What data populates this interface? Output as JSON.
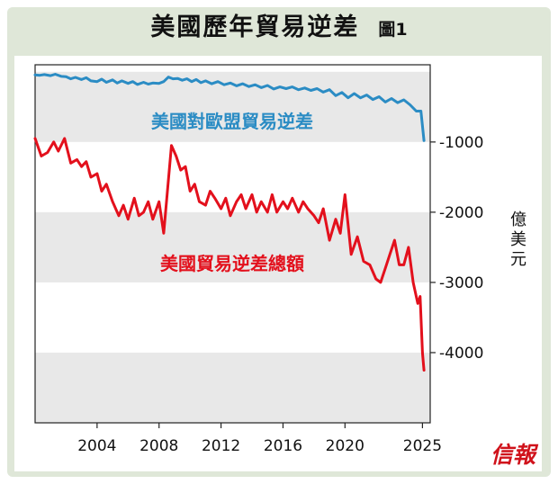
{
  "header": {
    "title": "美國歷年貿易逆差",
    "figure_label": "圖1"
  },
  "colors": {
    "total_series": "#e3101c",
    "eu_series": "#2b8cc4",
    "band": "#e8e8e8",
    "frame": "#dfe7d8"
  },
  "brand": {
    "logo_text": "信報"
  },
  "chart_data": {
    "type": "line",
    "title": "美國歷年貿易逆差",
    "ylabel": "億美元",
    "xlim": [
      2000,
      2025.5
    ],
    "ylim": [
      -5000,
      100
    ],
    "x_ticks": [
      2004,
      2008,
      2012,
      2016,
      2020,
      2025
    ],
    "y_ticks": [
      -1000,
      -2000,
      -3000,
      -4000
    ],
    "y_tick_labels": [
      "-1000",
      "-2000",
      "-3000",
      "-4000"
    ],
    "grid": false,
    "series": [
      {
        "name": "美國對歐盟貿易逆差",
        "color": "#2b8cc4",
        "points": [
          [
            2000.0,
            -45
          ],
          [
            2000.3,
            -50
          ],
          [
            2000.6,
            -40
          ],
          [
            2001.0,
            -55
          ],
          [
            2001.3,
            -35
          ],
          [
            2001.7,
            -65
          ],
          [
            2002.0,
            -70
          ],
          [
            2002.3,
            -100
          ],
          [
            2002.6,
            -80
          ],
          [
            2003.0,
            -110
          ],
          [
            2003.3,
            -85
          ],
          [
            2003.6,
            -130
          ],
          [
            2004.0,
            -140
          ],
          [
            2004.3,
            -105
          ],
          [
            2004.6,
            -150
          ],
          [
            2005.0,
            -115
          ],
          [
            2005.3,
            -160
          ],
          [
            2005.6,
            -130
          ],
          [
            2006.0,
            -165
          ],
          [
            2006.3,
            -140
          ],
          [
            2006.6,
            -180
          ],
          [
            2007.0,
            -150
          ],
          [
            2007.3,
            -175
          ],
          [
            2007.6,
            -160
          ],
          [
            2008.0,
            -165
          ],
          [
            2008.3,
            -140
          ],
          [
            2008.6,
            -75
          ],
          [
            2008.9,
            -100
          ],
          [
            2009.2,
            -95
          ],
          [
            2009.5,
            -120
          ],
          [
            2009.8,
            -100
          ],
          [
            2010.1,
            -140
          ],
          [
            2010.4,
            -110
          ],
          [
            2010.7,
            -155
          ],
          [
            2011.0,
            -130
          ],
          [
            2011.4,
            -170
          ],
          [
            2011.8,
            -140
          ],
          [
            2012.2,
            -185
          ],
          [
            2012.6,
            -160
          ],
          [
            2013.0,
            -200
          ],
          [
            2013.4,
            -170
          ],
          [
            2013.8,
            -210
          ],
          [
            2014.2,
            -185
          ],
          [
            2014.6,
            -225
          ],
          [
            2015.0,
            -195
          ],
          [
            2015.4,
            -245
          ],
          [
            2015.8,
            -215
          ],
          [
            2016.2,
            -240
          ],
          [
            2016.6,
            -215
          ],
          [
            2017.0,
            -255
          ],
          [
            2017.4,
            -230
          ],
          [
            2017.8,
            -265
          ],
          [
            2018.2,
            -240
          ],
          [
            2018.6,
            -290
          ],
          [
            2019.0,
            -255
          ],
          [
            2019.4,
            -340
          ],
          [
            2019.8,
            -295
          ],
          [
            2020.2,
            -370
          ],
          [
            2020.6,
            -310
          ],
          [
            2021.0,
            -370
          ],
          [
            2021.4,
            -330
          ],
          [
            2021.8,
            -395
          ],
          [
            2022.2,
            -355
          ],
          [
            2022.6,
            -430
          ],
          [
            2023.0,
            -380
          ],
          [
            2023.4,
            -440
          ],
          [
            2023.8,
            -400
          ],
          [
            2024.2,
            -470
          ],
          [
            2024.6,
            -560
          ],
          [
            2024.9,
            -560
          ],
          [
            2025.1,
            -980
          ]
        ]
      },
      {
        "name": "美國貿易逆差總額",
        "color": "#e3101c",
        "points": [
          [
            2000.0,
            -950
          ],
          [
            2000.4,
            -1200
          ],
          [
            2000.8,
            -1150
          ],
          [
            2001.2,
            -1000
          ],
          [
            2001.5,
            -1130
          ],
          [
            2001.9,
            -950
          ],
          [
            2002.3,
            -1300
          ],
          [
            2002.7,
            -1250
          ],
          [
            2003.0,
            -1350
          ],
          [
            2003.3,
            -1280
          ],
          [
            2003.6,
            -1500
          ],
          [
            2004.0,
            -1450
          ],
          [
            2004.3,
            -1700
          ],
          [
            2004.6,
            -1600
          ],
          [
            2005.0,
            -1850
          ],
          [
            2005.4,
            -2050
          ],
          [
            2005.7,
            -1900
          ],
          [
            2006.0,
            -2100
          ],
          [
            2006.4,
            -1800
          ],
          [
            2006.7,
            -2050
          ],
          [
            2007.0,
            -2000
          ],
          [
            2007.3,
            -1850
          ],
          [
            2007.6,
            -2100
          ],
          [
            2008.0,
            -1850
          ],
          [
            2008.3,
            -2300
          ],
          [
            2008.8,
            -1050
          ],
          [
            2009.1,
            -1200
          ],
          [
            2009.4,
            -1400
          ],
          [
            2009.7,
            -1350
          ],
          [
            2010.0,
            -1700
          ],
          [
            2010.3,
            -1600
          ],
          [
            2010.6,
            -1850
          ],
          [
            2011.0,
            -1900
          ],
          [
            2011.3,
            -1700
          ],
          [
            2011.6,
            -1800
          ],
          [
            2012.0,
            -1950
          ],
          [
            2012.3,
            -1800
          ],
          [
            2012.6,
            -2050
          ],
          [
            2013.0,
            -1850
          ],
          [
            2013.3,
            -1750
          ],
          [
            2013.6,
            -1950
          ],
          [
            2014.0,
            -1750
          ],
          [
            2014.3,
            -2000
          ],
          [
            2014.6,
            -1850
          ],
          [
            2015.0,
            -2000
          ],
          [
            2015.3,
            -1750
          ],
          [
            2015.6,
            -2000
          ],
          [
            2016.0,
            -1850
          ],
          [
            2016.3,
            -1950
          ],
          [
            2016.6,
            -1800
          ],
          [
            2017.0,
            -2000
          ],
          [
            2017.3,
            -1850
          ],
          [
            2017.6,
            -1950
          ],
          [
            2018.0,
            -2050
          ],
          [
            2018.3,
            -2150
          ],
          [
            2018.6,
            -1950
          ],
          [
            2019.0,
            -2400
          ],
          [
            2019.4,
            -2100
          ],
          [
            2019.7,
            -2300
          ],
          [
            2020.0,
            -1750
          ],
          [
            2020.4,
            -2600
          ],
          [
            2020.8,
            -2350
          ],
          [
            2021.2,
            -2700
          ],
          [
            2021.6,
            -2750
          ],
          [
            2022.0,
            -2950
          ],
          [
            2022.3,
            -3000
          ],
          [
            2022.6,
            -2800
          ],
          [
            2022.9,
            -2600
          ],
          [
            2023.2,
            -2400
          ],
          [
            2023.5,
            -2750
          ],
          [
            2023.8,
            -2750
          ],
          [
            2024.1,
            -2500
          ],
          [
            2024.4,
            -3000
          ],
          [
            2024.7,
            -3300
          ],
          [
            2024.85,
            -3200
          ],
          [
            2025.0,
            -4000
          ],
          [
            2025.1,
            -4250
          ]
        ]
      }
    ]
  }
}
